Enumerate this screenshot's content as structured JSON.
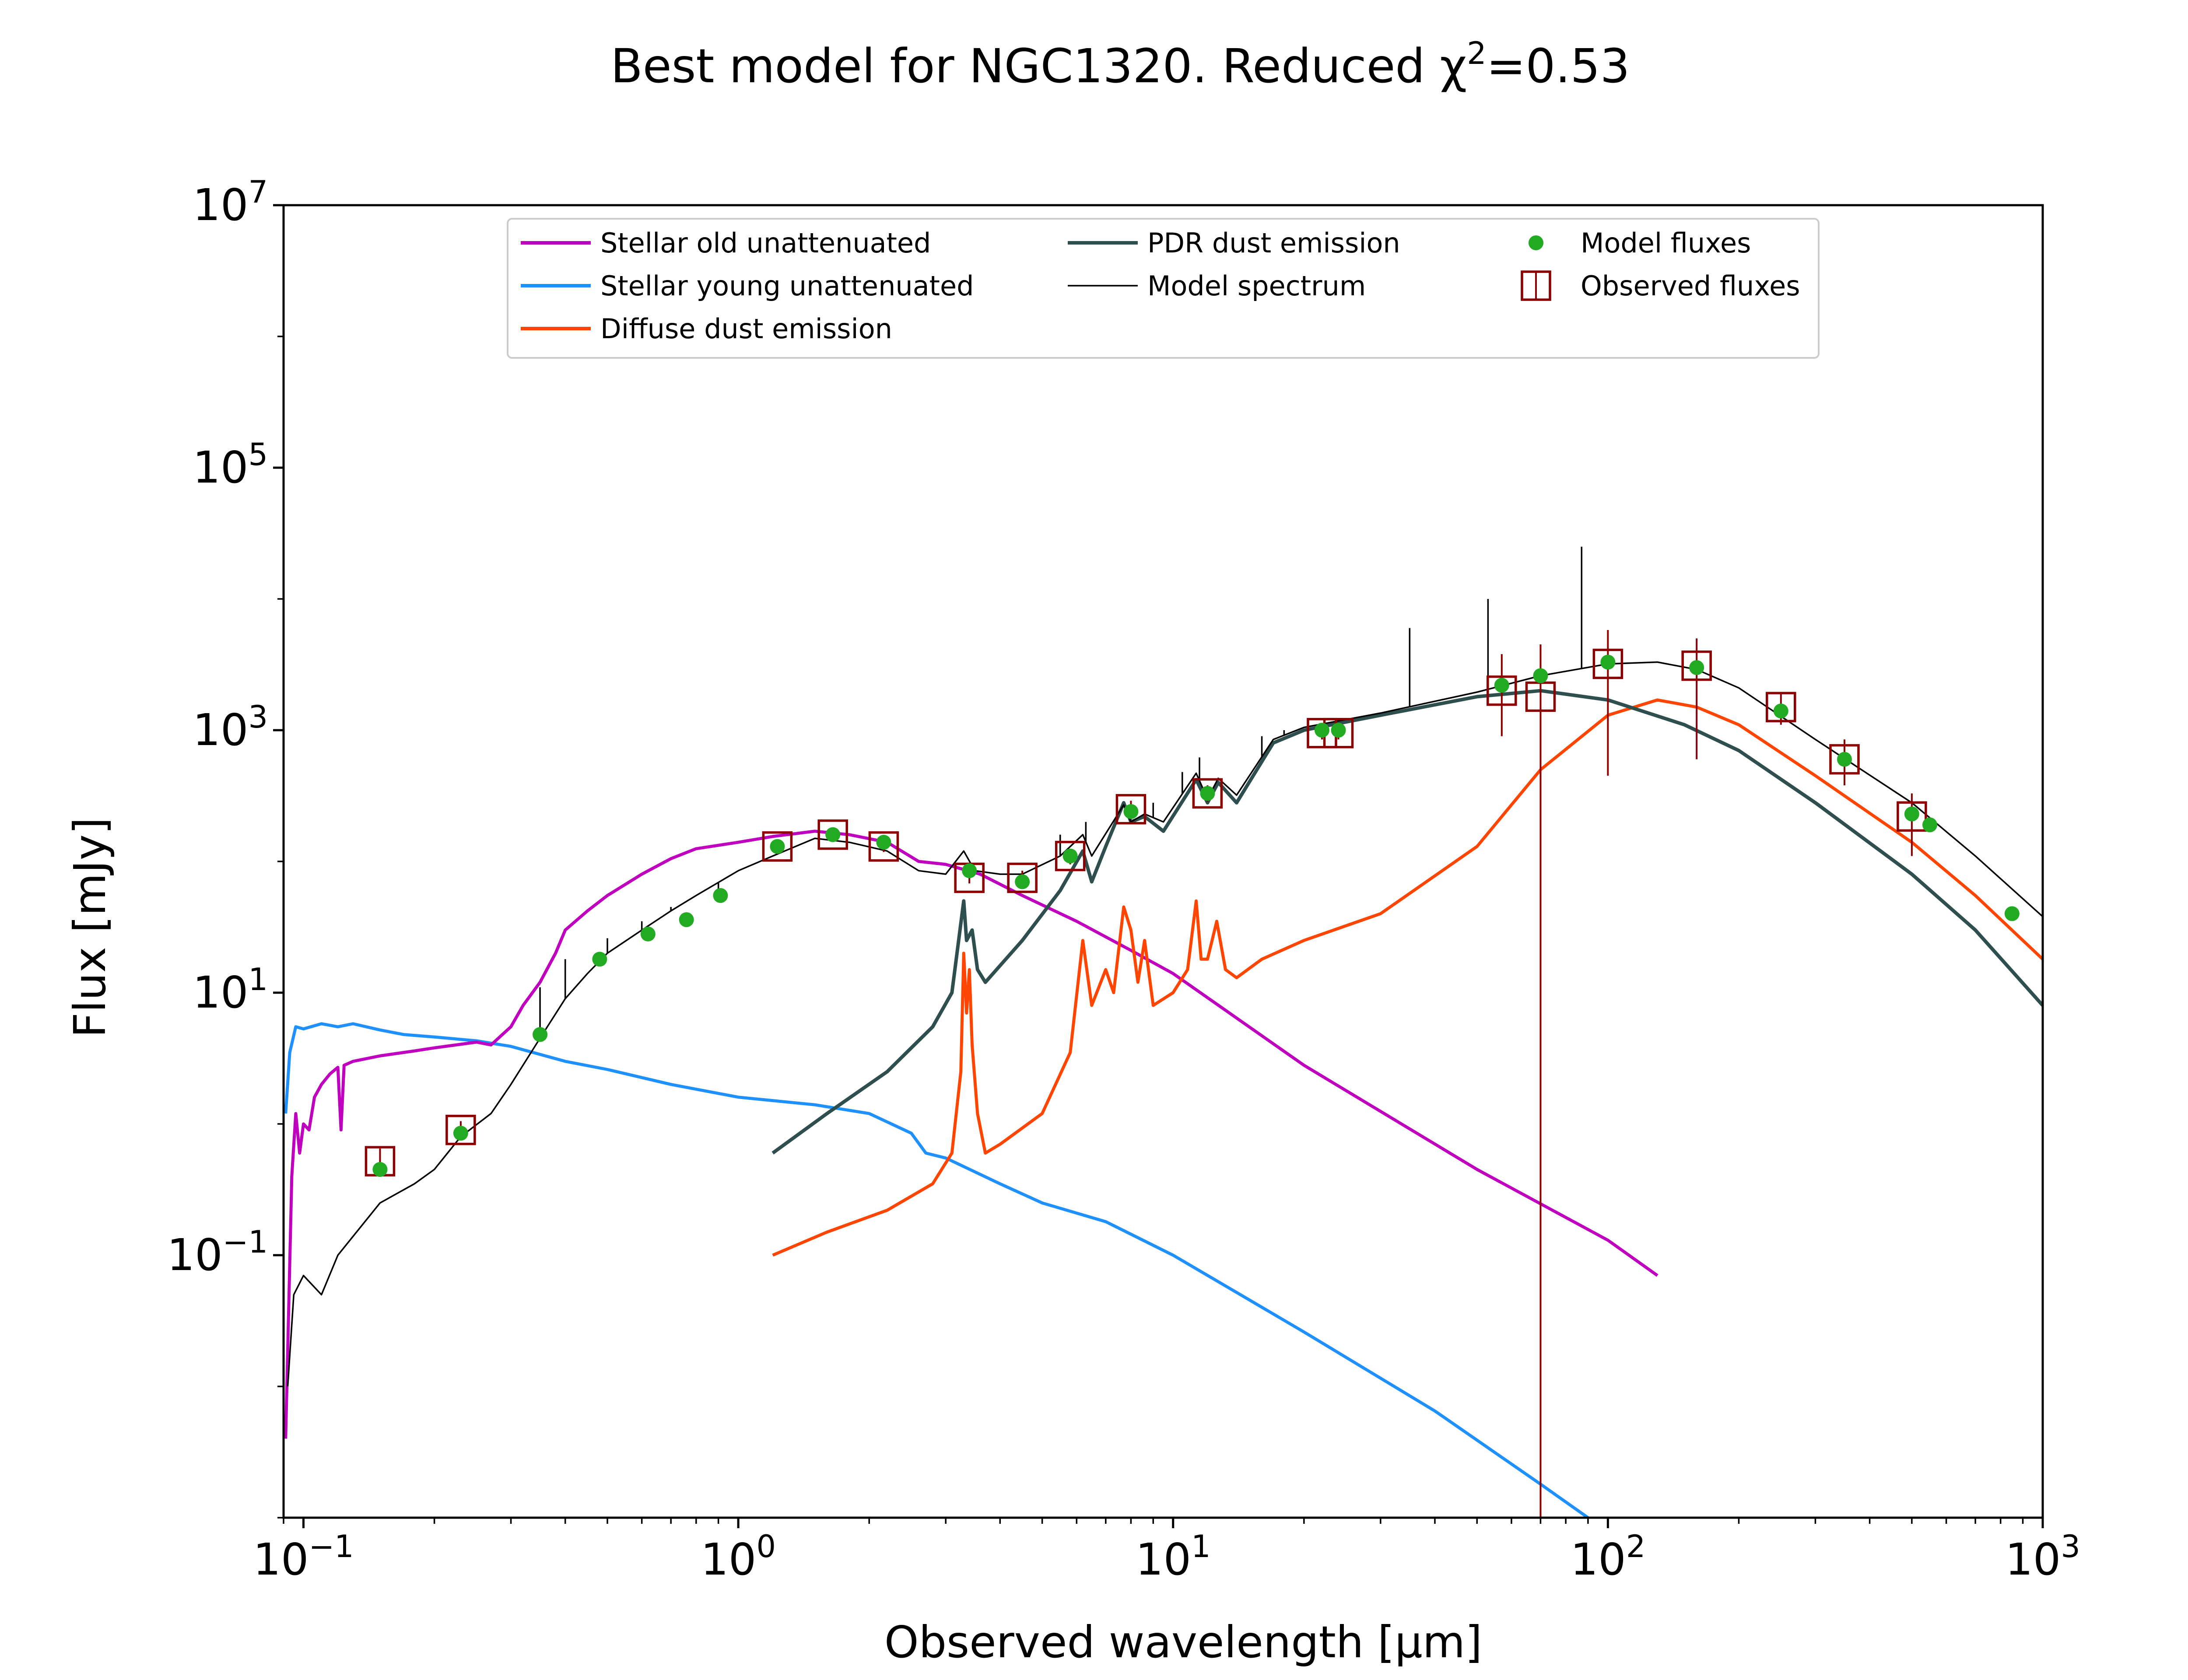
{
  "colors": {
    "old": "#bf00bf",
    "young": "#1e90ff",
    "diffuse": "#ff4500",
    "pdr": "#2f4f4f",
    "model": "#000000",
    "model_flux": "#22aa22",
    "observed": "#8b0000"
  },
  "chart_data": {
    "type": "line",
    "title": "Best model for NGC1320. Reduced χ²=0.53",
    "title_parts": {
      "main": "Best model for NGC1320. Reduced χ",
      "sup": "2",
      "tail": "=0.53"
    },
    "xlabel": "Observed wavelength [μm]",
    "ylabel": "Flux [mJy]",
    "xscale": "log",
    "yscale": "log",
    "xlim": [
      0.09,
      1000
    ],
    "ylim": [
      0.001,
      10000000
    ],
    "x_ticks": [
      {
        "value": 0.1,
        "base": "10",
        "exp": "−1"
      },
      {
        "value": 1,
        "base": "10",
        "exp": "0"
      },
      {
        "value": 10,
        "base": "10",
        "exp": "1"
      },
      {
        "value": 100,
        "base": "10",
        "exp": "2"
      },
      {
        "value": 1000,
        "base": "10",
        "exp": "3"
      }
    ],
    "y_ticks": [
      {
        "value": 0.1,
        "base": "10",
        "exp": "−1"
      },
      {
        "value": 10,
        "base": "10",
        "exp": "1"
      },
      {
        "value": 1000,
        "base": "10",
        "exp": "3"
      },
      {
        "value": 100000,
        "base": "10",
        "exp": "5"
      },
      {
        "value": 10000000,
        "base": "10",
        "exp": "7"
      }
    ],
    "legend": {
      "position": "upper center",
      "entries": [
        {
          "label": "Stellar old unattenuated",
          "series": "old"
        },
        {
          "label": "Stellar young unattenuated",
          "series": "young"
        },
        {
          "label": "Diffuse dust emission",
          "series": "diffuse"
        },
        {
          "label": "PDR dust emission",
          "series": "pdr"
        },
        {
          "label": "Model spectrum",
          "series": "model"
        },
        {
          "label": "Model fluxes",
          "series": "model_flux"
        },
        {
          "label": "Observed fluxes",
          "series": "observed"
        }
      ]
    },
    "series": [
      {
        "key": "old",
        "name": "Stellar old unattenuated",
        "points": [
          [
            0.091,
            0.004
          ],
          [
            0.094,
            0.4
          ],
          [
            0.096,
            1.2
          ],
          [
            0.098,
            0.6
          ],
          [
            0.1,
            1.0
          ],
          [
            0.103,
            0.9
          ],
          [
            0.106,
            1.6
          ],
          [
            0.11,
            2.0
          ],
          [
            0.115,
            2.4
          ],
          [
            0.12,
            2.7
          ],
          [
            0.122,
            0.9
          ],
          [
            0.124,
            2.8
          ],
          [
            0.13,
            3.0
          ],
          [
            0.15,
            3.3
          ],
          [
            0.18,
            3.6
          ],
          [
            0.2,
            3.8
          ],
          [
            0.25,
            4.2
          ],
          [
            0.27,
            4.0
          ],
          [
            0.3,
            5.5
          ],
          [
            0.32,
            8
          ],
          [
            0.35,
            12
          ],
          [
            0.38,
            20
          ],
          [
            0.4,
            30
          ],
          [
            0.45,
            42
          ],
          [
            0.5,
            55
          ],
          [
            0.6,
            80
          ],
          [
            0.7,
            105
          ],
          [
            0.8,
            125
          ],
          [
            1.0,
            140
          ],
          [
            1.2,
            155
          ],
          [
            1.5,
            170
          ],
          [
            1.8,
            160
          ],
          [
            2.2,
            140
          ],
          [
            2.6,
            100
          ],
          [
            3.0,
            95
          ],
          [
            3.6,
            80
          ],
          [
            4.5,
            55
          ],
          [
            6,
            35
          ],
          [
            8,
            21
          ],
          [
            10,
            14
          ],
          [
            20,
            2.8
          ],
          [
            50,
            0.45
          ],
          [
            100,
            0.13
          ],
          [
            130,
            0.07
          ]
        ]
      },
      {
        "key": "young",
        "name": "Stellar young unattenuated",
        "points": [
          [
            0.091,
            1.2
          ],
          [
            0.093,
            3.5
          ],
          [
            0.096,
            5.5
          ],
          [
            0.1,
            5.3
          ],
          [
            0.11,
            5.8
          ],
          [
            0.12,
            5.5
          ],
          [
            0.13,
            5.8
          ],
          [
            0.15,
            5.2
          ],
          [
            0.17,
            4.8
          ],
          [
            0.2,
            4.6
          ],
          [
            0.25,
            4.3
          ],
          [
            0.3,
            3.9
          ],
          [
            0.4,
            3.0
          ],
          [
            0.5,
            2.6
          ],
          [
            0.7,
            2.0
          ],
          [
            1.0,
            1.6
          ],
          [
            1.5,
            1.4
          ],
          [
            2.0,
            1.2
          ],
          [
            2.5,
            0.85
          ],
          [
            2.7,
            0.6
          ],
          [
            3.0,
            0.55
          ],
          [
            4.0,
            0.35
          ],
          [
            5.0,
            0.25
          ],
          [
            7,
            0.18
          ],
          [
            10,
            0.1
          ],
          [
            20,
            0.026
          ],
          [
            40,
            0.0065
          ],
          [
            70,
            0.0018
          ],
          [
            90,
            0.001
          ]
        ]
      },
      {
        "key": "diffuse",
        "name": "Diffuse dust emission",
        "points": [
          [
            1.2,
            0.1
          ],
          [
            1.6,
            0.15
          ],
          [
            2.2,
            0.22
          ],
          [
            2.8,
            0.35
          ],
          [
            3.1,
            0.6
          ],
          [
            3.25,
            2.5
          ],
          [
            3.3,
            20
          ],
          [
            3.35,
            7
          ],
          [
            3.4,
            15
          ],
          [
            3.45,
            4
          ],
          [
            3.55,
            1.2
          ],
          [
            3.7,
            0.6
          ],
          [
            4.0,
            0.7
          ],
          [
            5.0,
            1.2
          ],
          [
            5.8,
            3.5
          ],
          [
            6.2,
            25
          ],
          [
            6.5,
            8
          ],
          [
            7.0,
            15
          ],
          [
            7.3,
            10
          ],
          [
            7.7,
            45
          ],
          [
            8.0,
            30
          ],
          [
            8.3,
            12
          ],
          [
            8.6,
            25
          ],
          [
            9.0,
            8
          ],
          [
            10.0,
            10
          ],
          [
            10.8,
            15
          ],
          [
            11.3,
            50
          ],
          [
            11.6,
            18
          ],
          [
            12.0,
            18
          ],
          [
            12.6,
            35
          ],
          [
            13.2,
            15
          ],
          [
            14,
            13
          ],
          [
            16,
            18
          ],
          [
            20,
            25
          ],
          [
            30,
            40
          ],
          [
            50,
            130
          ],
          [
            70,
            500
          ],
          [
            100,
            1300
          ],
          [
            130,
            1700
          ],
          [
            160,
            1500
          ],
          [
            200,
            1100
          ],
          [
            300,
            450
          ],
          [
            500,
            140
          ],
          [
            700,
            55
          ],
          [
            1000,
            18
          ]
        ]
      },
      {
        "key": "pdr",
        "name": "PDR dust emission",
        "points": [
          [
            1.2,
            0.6
          ],
          [
            1.6,
            1.2
          ],
          [
            2.2,
            2.5
          ],
          [
            2.8,
            5.5
          ],
          [
            3.1,
            10
          ],
          [
            3.3,
            50
          ],
          [
            3.35,
            25
          ],
          [
            3.45,
            30
          ],
          [
            3.55,
            15
          ],
          [
            3.7,
            12
          ],
          [
            4.5,
            25
          ],
          [
            5.5,
            60
          ],
          [
            6.2,
            120
          ],
          [
            6.5,
            70
          ],
          [
            7.0,
            130
          ],
          [
            7.7,
            280
          ],
          [
            8.0,
            200
          ],
          [
            8.6,
            220
          ],
          [
            9.5,
            170
          ],
          [
            11.3,
            420
          ],
          [
            12,
            280
          ],
          [
            12.7,
            400
          ],
          [
            14,
            280
          ],
          [
            17,
            800
          ],
          [
            20,
            1000
          ],
          [
            30,
            1300
          ],
          [
            50,
            1800
          ],
          [
            70,
            2000
          ],
          [
            100,
            1700
          ],
          [
            150,
            1100
          ],
          [
            200,
            700
          ],
          [
            300,
            280
          ],
          [
            500,
            80
          ],
          [
            700,
            30
          ],
          [
            1000,
            8
          ]
        ]
      },
      {
        "key": "model",
        "name": "Model spectrum",
        "points": [
          [
            0.092,
            0.01
          ],
          [
            0.095,
            0.05
          ],
          [
            0.1,
            0.07
          ],
          [
            0.11,
            0.05
          ],
          [
            0.12,
            0.1
          ],
          [
            0.15,
            0.25
          ],
          [
            0.18,
            0.35
          ],
          [
            0.2,
            0.45
          ],
          [
            0.23,
            0.8
          ],
          [
            0.27,
            1.2
          ],
          [
            0.3,
            2.0
          ],
          [
            0.35,
            4.5
          ],
          [
            0.4,
            9
          ],
          [
            0.45,
            14
          ],
          [
            0.5,
            20
          ],
          [
            0.6,
            30
          ],
          [
            0.7,
            42
          ],
          [
            0.8,
            55
          ],
          [
            1.0,
            85
          ],
          [
            1.2,
            110
          ],
          [
            1.5,
            150
          ],
          [
            1.8,
            140
          ],
          [
            2.2,
            120
          ],
          [
            2.6,
            85
          ],
          [
            3.0,
            80
          ],
          [
            3.3,
            120
          ],
          [
            3.5,
            85
          ],
          [
            4.0,
            80
          ],
          [
            4.5,
            80
          ],
          [
            5.5,
            110
          ],
          [
            6.2,
            160
          ],
          [
            6.5,
            110
          ],
          [
            7.7,
            270
          ],
          [
            8.0,
            200
          ],
          [
            8.6,
            230
          ],
          [
            9.5,
            200
          ],
          [
            11.3,
            470
          ],
          [
            12,
            300
          ],
          [
            12.7,
            430
          ],
          [
            14,
            320
          ],
          [
            17,
            850
          ],
          [
            20,
            1050
          ],
          [
            30,
            1350
          ],
          [
            50,
            1950
          ],
          [
            70,
            2600
          ],
          [
            100,
            3200
          ],
          [
            130,
            3300
          ],
          [
            160,
            2900
          ],
          [
            200,
            2100
          ],
          [
            300,
            850
          ],
          [
            500,
            280
          ],
          [
            700,
            110
          ],
          [
            1000,
            38
          ]
        ]
      }
    ],
    "spikes": [
      [
        0.35,
        11
      ],
      [
        0.4,
        18
      ],
      [
        0.5,
        26
      ],
      [
        0.6,
        35
      ],
      [
        0.7,
        45
      ],
      [
        0.9,
        60
      ],
      [
        5.5,
        160
      ],
      [
        6.3,
        200
      ],
      [
        9.0,
        280
      ],
      [
        10.5,
        480
      ],
      [
        11.5,
        620
      ],
      [
        16,
        900
      ],
      [
        18,
        1000
      ],
      [
        35,
        6000
      ],
      [
        53,
        10000
      ],
      [
        87,
        25000
      ],
      [
        100,
        3400
      ]
    ],
    "model_fluxes": [
      [
        0.15,
        0.45
      ],
      [
        0.23,
        0.85
      ],
      [
        0.35,
        4.8
      ],
      [
        0.48,
        18
      ],
      [
        0.62,
        28
      ],
      [
        0.76,
        36
      ],
      [
        0.91,
        55
      ],
      [
        1.23,
        130
      ],
      [
        1.65,
        160
      ],
      [
        2.16,
        140
      ],
      [
        3.4,
        85
      ],
      [
        4.5,
        70
      ],
      [
        5.8,
        110
      ],
      [
        8.0,
        240
      ],
      [
        12,
        330
      ],
      [
        22,
        1000
      ],
      [
        24,
        1000
      ],
      [
        57,
        2200
      ],
      [
        70,
        2600
      ],
      [
        100,
        3300
      ],
      [
        160,
        3000
      ],
      [
        250,
        1400
      ],
      [
        350,
        600
      ],
      [
        500,
        230
      ],
      [
        550,
        190
      ],
      [
        850,
        40
      ]
    ],
    "observed_fluxes": [
      {
        "x": 0.15,
        "y": 0.52,
        "err": [
          0.4,
          0.65
        ]
      },
      {
        "x": 0.23,
        "y": 0.9,
        "err": [
          0.78,
          1.05
        ]
      },
      {
        "x": 1.23,
        "y": 130,
        "err": [
          120,
          140
        ]
      },
      {
        "x": 1.65,
        "y": 160,
        "err": [
          145,
          175
        ]
      },
      {
        "x": 2.16,
        "y": 130,
        "err": [
          118,
          143
        ]
      },
      {
        "x": 3.4,
        "y": 75,
        "err": [
          68,
          82
        ]
      },
      {
        "x": 4.5,
        "y": 75,
        "err": [
          65,
          85
        ]
      },
      {
        "x": 5.8,
        "y": 110,
        "err": [
          95,
          125
        ]
      },
      {
        "x": 8.0,
        "y": 250,
        "err": [
          215,
          290
        ]
      },
      {
        "x": 12,
        "y": 330,
        "err": [
          285,
          380
        ]
      },
      {
        "x": 22,
        "y": 950,
        "err": [
          850,
          1050
        ]
      },
      {
        "x": 24,
        "y": 950,
        "err": [
          850,
          1050
        ]
      },
      {
        "x": 57,
        "y": 2000,
        "err": [
          900,
          3800
        ]
      },
      {
        "x": 70,
        "y": 1800,
        "err": [
          0.001,
          4500
        ]
      },
      {
        "x": 100,
        "y": 3200,
        "err": [
          450,
          5800
        ]
      },
      {
        "x": 160,
        "y": 3100,
        "err": [
          600,
          5000
        ]
      },
      {
        "x": 250,
        "y": 1500,
        "err": [
          1100,
          1900
        ]
      },
      {
        "x": 350,
        "y": 600,
        "err": [
          380,
          850
        ]
      },
      {
        "x": 500,
        "y": 220,
        "err": [
          110,
          330
        ]
      }
    ]
  }
}
